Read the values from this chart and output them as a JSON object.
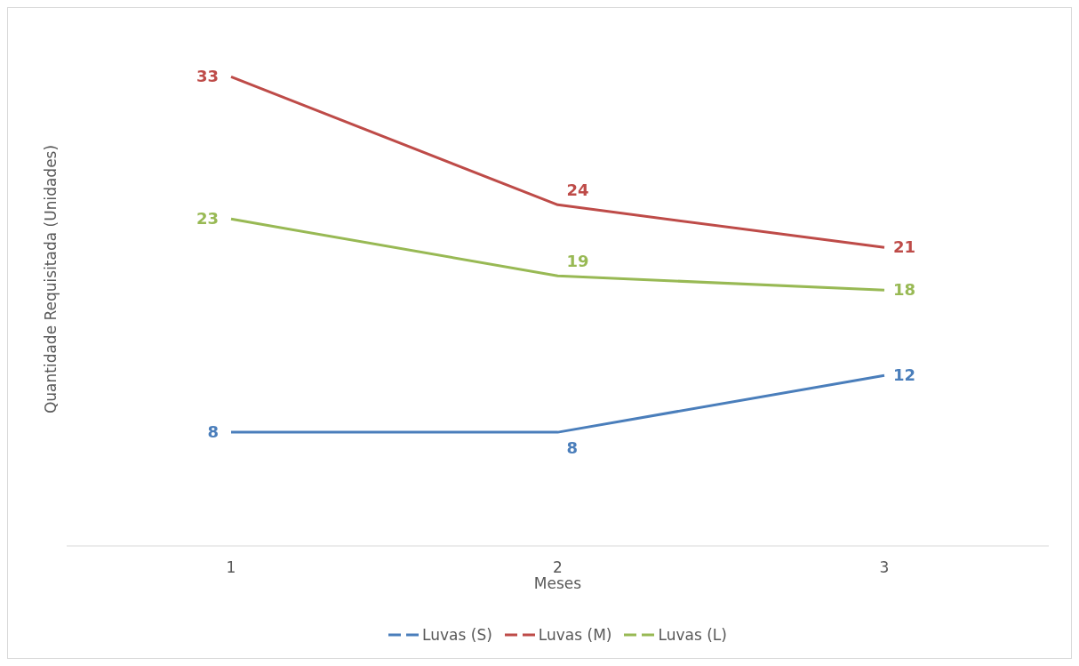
{
  "chart_data": {
    "type": "line",
    "xlabel": "Meses",
    "ylabel": "Quantidade Requisitada (Unidades)",
    "categories": [
      "1",
      "2",
      "3"
    ],
    "series": [
      {
        "name": "Luvas (S)",
        "color": "#4a7ebb",
        "values": [
          8,
          8,
          12
        ]
      },
      {
        "name": "Luvas (M)",
        "color": "#be4b48",
        "values": [
          33,
          24,
          21
        ]
      },
      {
        "name": "Luvas (L)",
        "color": "#98b954",
        "values": [
          23,
          19,
          18
        ]
      }
    ],
    "data_labels": true,
    "legend": "bottom",
    "grid": false,
    "marker": "none",
    "line_style": "solid"
  }
}
